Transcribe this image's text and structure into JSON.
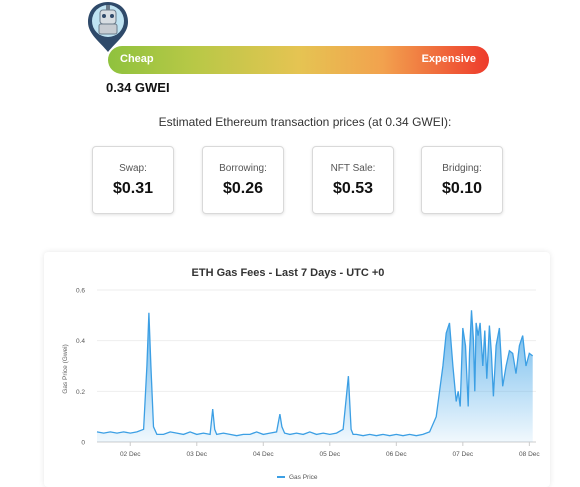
{
  "gauge": {
    "cheap_label": "Cheap",
    "expensive_label": "Expensive",
    "current_value": "0.34 GWEI",
    "colors": {
      "low": "#8fc23e",
      "mid": "#e5c452",
      "high": "#ee3b2c"
    }
  },
  "estimates": {
    "title": "Estimated Ethereum transaction prices (at 0.34 GWEI):",
    "cards": [
      {
        "label": "Swap:",
        "value": "$0.31"
      },
      {
        "label": "Borrowing:",
        "value": "$0.26"
      },
      {
        "label": "NFT Sale:",
        "value": "$0.53"
      },
      {
        "label": "Bridging:",
        "value": "$0.10"
      }
    ]
  },
  "chart_data": {
    "type": "area",
    "title": "ETH Gas Fees - Last 7 Days - UTC +0",
    "xlabel": "",
    "ylabel": "Gas Price (Gwei)",
    "ylim": [
      0,
      0.6
    ],
    "yticks": [
      "0",
      "0.2",
      "0.4",
      "0.6"
    ],
    "xticks": [
      "02 Dec",
      "03 Dec",
      "04 Dec",
      "05 Dec",
      "06 Dec",
      "07 Dec",
      "08 Dec"
    ],
    "xrange_days": [
      1.5,
      8.1
    ],
    "legend": "bottom-center",
    "color": "#4aa8e8",
    "series": [
      {
        "name": "Gas Price",
        "x": [
          1.5,
          1.6,
          1.7,
          1.8,
          1.9,
          2.0,
          2.1,
          2.2,
          2.25,
          2.28,
          2.31,
          2.35,
          2.4,
          2.5,
          2.6,
          2.7,
          2.8,
          2.9,
          3.0,
          3.1,
          3.2,
          3.24,
          3.27,
          3.3,
          3.4,
          3.5,
          3.6,
          3.7,
          3.8,
          3.9,
          4.0,
          4.1,
          4.2,
          4.25,
          4.28,
          4.32,
          4.4,
          4.5,
          4.6,
          4.7,
          4.8,
          4.9,
          5.0,
          5.1,
          5.2,
          5.28,
          5.32,
          5.35,
          5.4,
          5.5,
          5.6,
          5.7,
          5.8,
          5.9,
          6.0,
          6.1,
          6.2,
          6.3,
          6.4,
          6.5,
          6.6,
          6.7,
          6.75,
          6.8,
          6.85,
          6.9,
          6.93,
          6.96,
          7.0,
          7.04,
          7.08,
          7.1,
          7.13,
          7.16,
          7.18,
          7.2,
          7.23,
          7.26,
          7.3,
          7.33,
          7.36,
          7.4,
          7.43,
          7.46,
          7.5,
          7.55,
          7.6,
          7.65,
          7.7,
          7.75,
          7.8,
          7.85,
          7.9,
          7.95,
          8.0,
          8.05
        ],
        "values": [
          0.04,
          0.035,
          0.04,
          0.035,
          0.04,
          0.035,
          0.04,
          0.05,
          0.3,
          0.51,
          0.3,
          0.06,
          0.03,
          0.03,
          0.04,
          0.035,
          0.03,
          0.04,
          0.03,
          0.035,
          0.03,
          0.13,
          0.05,
          0.03,
          0.035,
          0.03,
          0.025,
          0.03,
          0.03,
          0.04,
          0.03,
          0.035,
          0.04,
          0.11,
          0.06,
          0.035,
          0.03,
          0.035,
          0.03,
          0.04,
          0.03,
          0.035,
          0.03,
          0.035,
          0.05,
          0.26,
          0.05,
          0.03,
          0.03,
          0.025,
          0.03,
          0.025,
          0.03,
          0.025,
          0.03,
          0.025,
          0.03,
          0.025,
          0.03,
          0.04,
          0.1,
          0.3,
          0.43,
          0.47,
          0.3,
          0.16,
          0.2,
          0.14,
          0.45,
          0.38,
          0.14,
          0.35,
          0.52,
          0.4,
          0.2,
          0.47,
          0.42,
          0.47,
          0.3,
          0.44,
          0.25,
          0.46,
          0.35,
          0.18,
          0.38,
          0.45,
          0.22,
          0.3,
          0.36,
          0.35,
          0.27,
          0.38,
          0.42,
          0.3,
          0.35,
          0.34
        ]
      }
    ]
  }
}
